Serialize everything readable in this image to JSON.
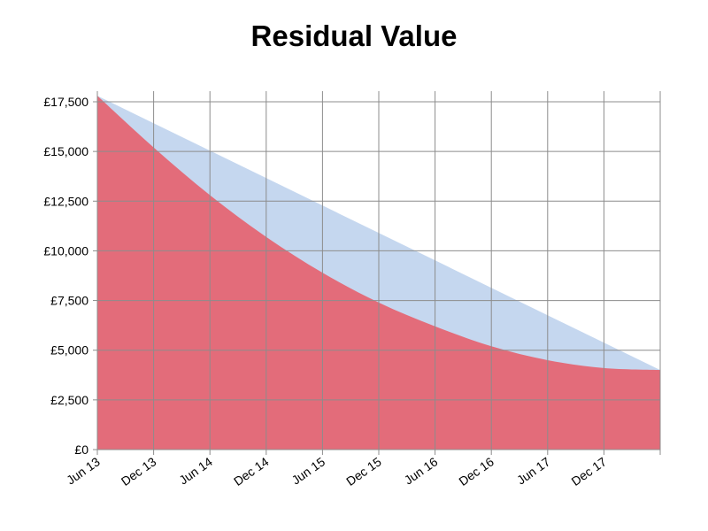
{
  "chart_data": {
    "type": "area",
    "title": "Residual Value",
    "xlabel": "",
    "ylabel": "",
    "x_ticks": [
      "Jun 13",
      "Dec 13",
      "Jun 14",
      "Dec 14",
      "Jun 15",
      "Dec 15",
      "Jun 16",
      "Dec 16",
      "Jun 17",
      "Dec 17"
    ],
    "x_range": [
      "2013-06",
      "2018-06"
    ],
    "y_ticks": [
      "£0",
      "£2,500",
      "£5,000",
      "£7,500",
      "£10,000",
      "£12,500",
      "£15,000",
      "£17,500"
    ],
    "ylim": [
      0,
      17500
    ],
    "grid": true,
    "series": [
      {
        "color": "#c5d7ef",
        "x": [
          "2013-06",
          "2018-06"
        ],
        "values": [
          17800,
          4000
        ]
      },
      {
        "color": "#e36c7a",
        "x": [
          "2013-06",
          "2013-12",
          "2014-06",
          "2014-12",
          "2015-06",
          "2015-12",
          "2016-06",
          "2016-12",
          "2017-06",
          "2017-12",
          "2018-06"
        ],
        "values": [
          17800,
          15200,
          12800,
          10700,
          8900,
          7400,
          6200,
          5200,
          4500,
          4100,
          4000
        ]
      }
    ]
  }
}
